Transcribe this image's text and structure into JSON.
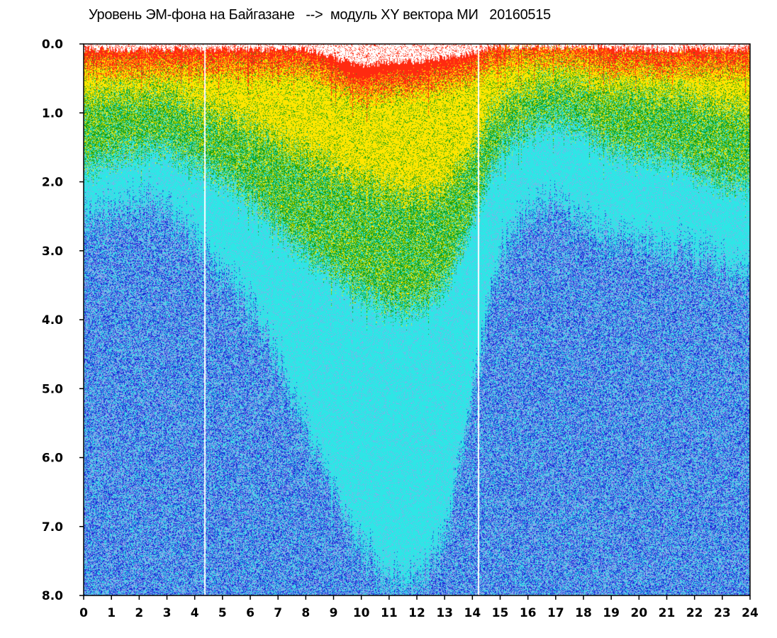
{
  "chart_data": {
    "type": "heatmap",
    "title": "Уровень ЭМ-фона на Байгазане   -->  модуль XY вектора МИ   20160515",
    "xlabel": "",
    "ylabel": "",
    "xlim": [
      0,
      24
    ],
    "ylim": [
      8.0,
      0.0
    ],
    "y_axis_inverted": true,
    "grid": false,
    "x_ticks": [
      "0",
      "1",
      "2",
      "3",
      "4",
      "5",
      "6",
      "7",
      "8",
      "9",
      "10",
      "11",
      "12",
      "13",
      "14",
      "15",
      "16",
      "17",
      "18",
      "19",
      "20",
      "21",
      "22",
      "23",
      "24"
    ],
    "y_ticks": [
      "0.0",
      "1.0",
      "2.0",
      "3.0",
      "4.0",
      "5.0",
      "6.0",
      "7.0",
      "8.0"
    ],
    "colormap": [
      "#ff2a10",
      "#ffe600",
      "#14a014",
      "#2ee6e6",
      "#1a2ad8"
    ],
    "colormap_order": "high level (near 0.0) to low level (near 8.0)",
    "gap_hours": [
      4.35,
      14.2
    ],
    "transition_depth_by_hour": {
      "hours": [
        0,
        1,
        2,
        3,
        4,
        5,
        6,
        7,
        8,
        9,
        10,
        11,
        12,
        13,
        14,
        15,
        16,
        17,
        18,
        19,
        20,
        21,
        22,
        23,
        24
      ],
      "red": [
        0.3,
        0.3,
        0.3,
        0.3,
        0.3,
        0.3,
        0.3,
        0.3,
        0.3,
        0.5,
        0.7,
        0.6,
        0.6,
        0.5,
        0.4,
        0.2,
        0.15,
        0.15,
        0.2,
        0.3,
        0.3,
        0.3,
        0.3,
        0.3,
        0.3
      ],
      "yellow": [
        0.8,
        0.7,
        0.7,
        0.7,
        0.9,
        1.0,
        1.2,
        1.4,
        1.6,
        1.8,
        2.0,
        2.1,
        2.2,
        2.1,
        1.5,
        0.8,
        0.6,
        0.5,
        0.6,
        0.7,
        0.7,
        0.7,
        0.8,
        0.9,
        1.0
      ],
      "green": [
        1.8,
        1.6,
        1.5,
        1.5,
        1.7,
        1.9,
        2.2,
        2.6,
        3.0,
        3.3,
        3.6,
        3.8,
        3.8,
        3.5,
        2.5,
        1.5,
        1.2,
        1.1,
        1.2,
        1.5,
        1.6,
        1.6,
        1.8,
        2.0,
        2.0
      ],
      "cyan": [
        2.6,
        2.4,
        2.3,
        2.4,
        2.8,
        3.3,
        3.8,
        4.6,
        5.6,
        6.5,
        7.3,
        7.8,
        7.8,
        7.2,
        5.0,
        3.0,
        2.4,
        2.3,
        2.6,
        2.8,
        2.9,
        3.0,
        3.0,
        3.2,
        3.4
      ]
    }
  }
}
